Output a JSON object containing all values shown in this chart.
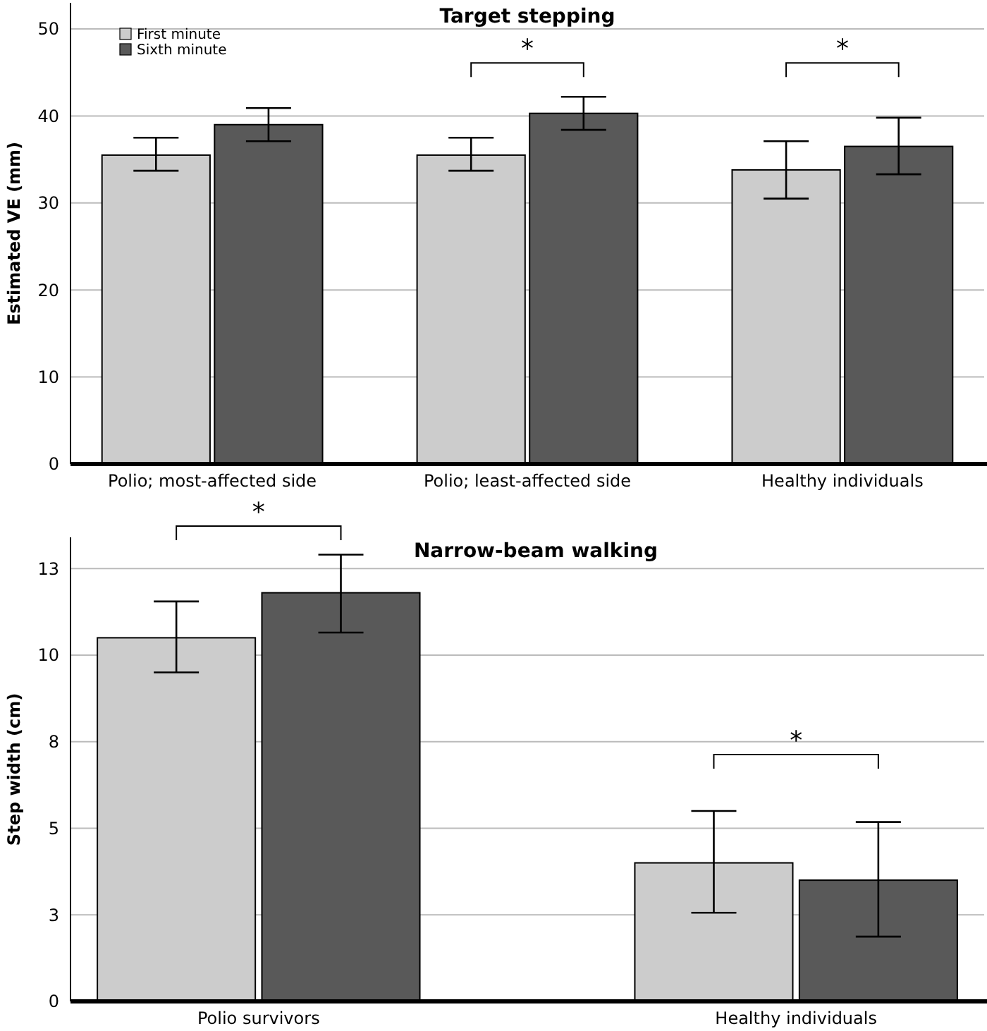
{
  "chart_data": [
    {
      "type": "bar",
      "title": "Target stepping",
      "ylabel": "Estimated VE (mm)",
      "categories": [
        "Polio; most-affected side",
        "Polio; least-affected side",
        "Healthy individuals"
      ],
      "series": [
        {
          "name": "First minute",
          "color": "#cccccc",
          "values": [
            35.5,
            35.5,
            33.8
          ],
          "errors": [
            [
              33.7,
              37.5
            ],
            [
              33.7,
              37.5
            ],
            [
              30.5,
              37.1
            ]
          ]
        },
        {
          "name": "Sixth minute",
          "color": "#595959",
          "values": [
            39.0,
            40.3,
            36.5
          ],
          "errors": [
            [
              37.1,
              40.9
            ],
            [
              38.4,
              42.2
            ],
            [
              33.3,
              39.8
            ]
          ]
        }
      ],
      "ylim": [
        0,
        53
      ],
      "yticks": [
        0,
        10,
        20,
        30,
        40,
        50
      ],
      "grid": "y",
      "legend": "top left",
      "annotations": [
        "*",
        "*"
      ]
    },
    {
      "type": "bar",
      "title": "Narrow-beam walking",
      "ylabel": "Step width (cm)",
      "categories": [
        "Polio survivors",
        "Healthy individuals"
      ],
      "series": [
        {
          "color": "#cccccc",
          "values": [
            10.5,
            4.0
          ],
          "errors": [
            [
              9.5,
              11.55
            ],
            [
              2.56,
              5.5
            ]
          ]
        },
        {
          "color": "#595959",
          "values": [
            11.8,
            3.5
          ],
          "errors": [
            [
              10.65,
              12.9
            ],
            [
              1.87,
              5.18
            ]
          ]
        }
      ],
      "ylim": [
        0,
        13.4
      ],
      "yticks": [
        0,
        {
          "value": 2.5,
          "label": "3"
        },
        5,
        {
          "value": 7.5,
          "label": "8"
        },
        10,
        {
          "value": 12.5,
          "label": "13"
        }
      ],
      "grid": "y",
      "legend": false,
      "annotations": [
        "*",
        "*"
      ]
    }
  ]
}
